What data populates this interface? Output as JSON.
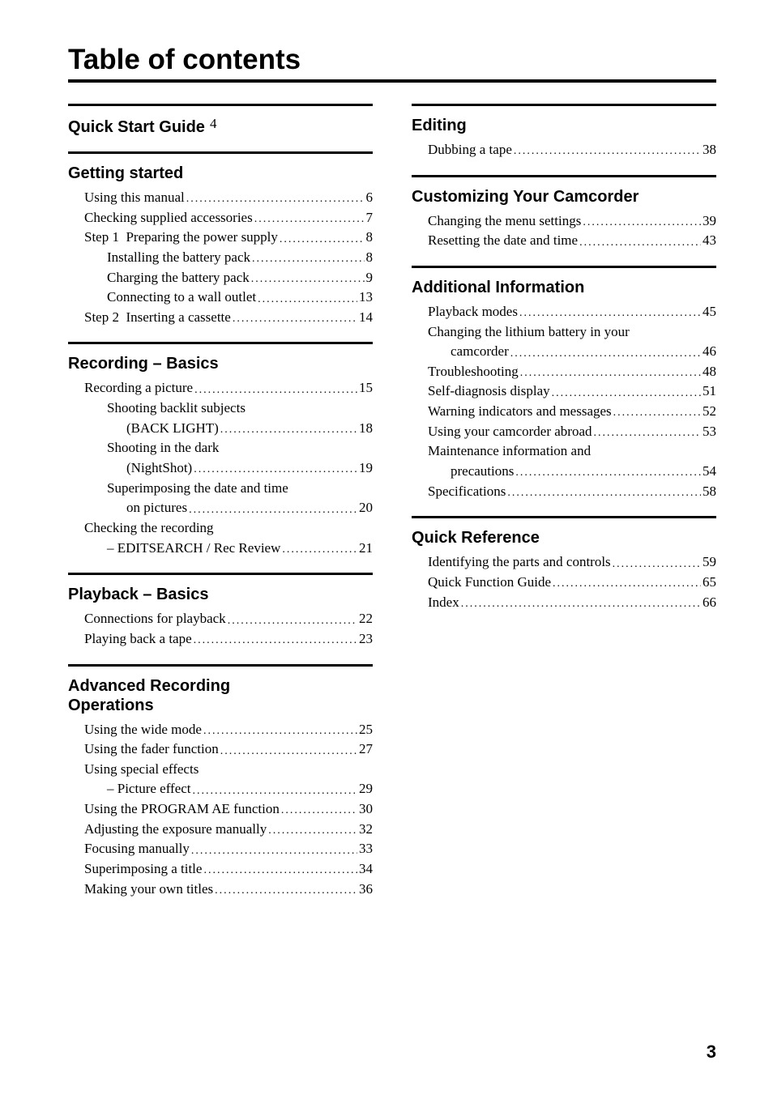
{
  "title": "Table of contents",
  "page_number": "3",
  "left": {
    "quick_start": {
      "head": "Quick Start Guide",
      "page": "4"
    },
    "getting_started": {
      "head": "Getting started",
      "items": [
        {
          "label": "Using this manual",
          "page": "6"
        },
        {
          "label": "Checking supplied accessories",
          "page": "7"
        },
        {
          "label": "Step 1  Preparing the power supply",
          "page": "8"
        },
        {
          "label": "Installing the battery pack",
          "page": "8",
          "indent": 2
        },
        {
          "label": "Charging the battery pack",
          "page": "9",
          "indent": 2
        },
        {
          "label": "Connecting to a wall outlet",
          "page": "13",
          "indent": 2
        },
        {
          "label": "Step 2  Inserting a cassette",
          "page": "14"
        }
      ]
    },
    "recording_basics": {
      "head": "Recording – Basics",
      "items": [
        {
          "label": "Recording a picture",
          "page": "15"
        },
        {
          "label": "Shooting backlit subjects",
          "indent": 2
        },
        {
          "label": "(BACK LIGHT)",
          "page": "18",
          "indent": 3
        },
        {
          "label": "Shooting in the dark",
          "indent": 2
        },
        {
          "label": "(NightShot)",
          "page": "19",
          "indent": 3
        },
        {
          "label": "Superimposing the date and time",
          "indent": 2
        },
        {
          "label": "on pictures",
          "page": "20",
          "indent": 3
        },
        {
          "label": "Checking the recording",
          "indent": 1
        },
        {
          "label": "– EDITSEARCH / Rec Review",
          "page": "21",
          "indent": 2
        }
      ]
    },
    "playback_basics": {
      "head": "Playback – Basics",
      "items": [
        {
          "label": "Connections for playback",
          "page": "22"
        },
        {
          "label": "Playing back a tape",
          "page": "23"
        }
      ]
    },
    "adv_rec": {
      "head_l1": "Advanced Recording",
      "head_l2": "Operations",
      "items": [
        {
          "label": "Using the wide mode",
          "page": "25"
        },
        {
          "label": "Using the fader function",
          "page": "27"
        },
        {
          "label": "Using special effects",
          "indent": 1
        },
        {
          "label": "– Picture effect",
          "page": "29",
          "indent": 2
        },
        {
          "label": "Using the PROGRAM AE function",
          "page": "30"
        },
        {
          "label": "Adjusting the exposure manually",
          "page": "32"
        },
        {
          "label": "Focusing manually",
          "page": "33"
        },
        {
          "label": "Superimposing a title",
          "page": "34"
        },
        {
          "label": "Making your own titles",
          "page": "36"
        }
      ]
    }
  },
  "right": {
    "editing": {
      "head": "Editing",
      "items": [
        {
          "label": "Dubbing a tape",
          "page": "38"
        }
      ]
    },
    "customizing": {
      "head": "Customizing Your Camcorder",
      "items": [
        {
          "label": "Changing the menu settings",
          "page": "39"
        },
        {
          "label": "Resetting the date and time",
          "page": "43"
        }
      ]
    },
    "additional": {
      "head": "Additional Information",
      "items": [
        {
          "label": "Playback modes",
          "page": "45"
        },
        {
          "label": "Changing the lithium battery in your",
          "indent": 1
        },
        {
          "label": "camcorder",
          "page": "46",
          "indent": 2
        },
        {
          "label": "Troubleshooting",
          "page": "48"
        },
        {
          "label": "Self-diagnosis display",
          "page": "51"
        },
        {
          "label": "Warning indicators and messages",
          "page": "52"
        },
        {
          "label": "Using your camcorder abroad",
          "page": "53"
        },
        {
          "label": "Maintenance information and",
          "indent": 1
        },
        {
          "label": "precautions",
          "page": "54",
          "indent": 2
        },
        {
          "label": "Specifications",
          "page": "58"
        }
      ]
    },
    "quick_ref": {
      "head": "Quick Reference",
      "items": [
        {
          "label": "Identifying the parts and controls",
          "page": "59"
        },
        {
          "label": "Quick Function Guide",
          "page": "65"
        },
        {
          "label": "Index",
          "page": "66"
        }
      ]
    }
  }
}
